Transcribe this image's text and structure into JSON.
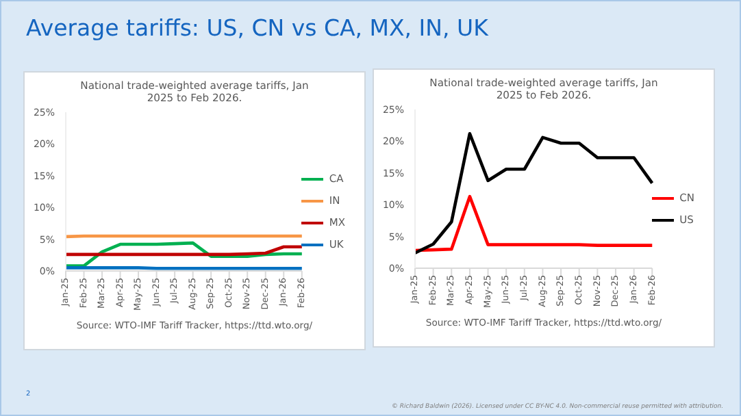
{
  "chart_data": [
    {
      "type": "other",
      "title": "Average tariffs: US, CN vs CA, MX, IN, UK",
      "annotations": [
        "2",
        "© Richard Baldwin (2026). Licensed under CC BY-NC 4.0. Non-commercial reuse permitted with attribution."
      ]
    },
    {
      "type": "line",
      "title": "National trade-weighted average tariffs, Jan 2025 to Feb 2026.",
      "categories": [
        "Jan-25",
        "Feb-25",
        "Mar-25",
        "Apr-25",
        "May-25",
        "Jun-25",
        "Jul-25",
        "Aug-25",
        "Sep-25",
        "Oct-25",
        "Nov-25",
        "Dec-25",
        "Jan-26",
        "Feb-26"
      ],
      "series": [
        {
          "name": "CA",
          "color": "#00b050",
          "values": [
            0.8,
            0.8,
            3.0,
            4.2,
            4.2,
            4.2,
            4.3,
            4.4,
            2.3,
            2.3,
            2.3,
            2.6,
            2.7,
            2.7
          ]
        },
        {
          "name": "IN",
          "color": "#f79646",
          "values": [
            5.4,
            5.5,
            5.5,
            5.5,
            5.5,
            5.5,
            5.5,
            5.5,
            5.5,
            5.5,
            5.5,
            5.5,
            5.5,
            5.5
          ]
        },
        {
          "name": "MX",
          "color": "#c00000",
          "values": [
            2.6,
            2.6,
            2.6,
            2.6,
            2.6,
            2.6,
            2.6,
            2.6,
            2.6,
            2.6,
            2.7,
            2.8,
            3.8,
            3.8
          ]
        },
        {
          "name": "UK",
          "color": "#0070c0",
          "values": [
            0.5,
            0.5,
            0.5,
            0.5,
            0.5,
            0.4,
            0.4,
            0.4,
            0.4,
            0.4,
            0.4,
            0.4,
            0.4,
            0.4
          ]
        }
      ],
      "ylim": [
        0,
        25
      ],
      "yticks": [
        {
          "value": 0,
          "label": "0%"
        },
        {
          "value": 5,
          "label": "5%"
        },
        {
          "value": 10,
          "label": "10%"
        },
        {
          "value": 15,
          "label": "15%"
        },
        {
          "value": 20,
          "label": "20%"
        },
        {
          "value": 25,
          "label": "25%"
        }
      ],
      "legend": "right",
      "marker": "none",
      "line_style": "solid",
      "annotations": [
        "Source: WTO-IMF Tariff Tracker, https://ttd.wto.org/"
      ]
    },
    {
      "type": "line",
      "title": "National trade-weighted average tariffs, Jan 2025 to Feb 2026.",
      "categories": [
        "Jan-25",
        "Feb-25",
        "Mar-25",
        "Apr-25",
        "May-25",
        "Jun-25",
        "Jul-25",
        "Aug-25",
        "Sep-25",
        "Oct-25",
        "Nov-25",
        "Dec-25",
        "Jan-26",
        "Feb-26"
      ],
      "series": [
        {
          "name": "CN",
          "color": "#ff0000",
          "values": [
            2.8,
            2.9,
            3.0,
            11.3,
            3.7,
            3.7,
            3.7,
            3.7,
            3.7,
            3.7,
            3.6,
            3.6,
            3.6,
            3.6
          ]
        },
        {
          "name": "US",
          "color": "#000000",
          "values": [
            2.4,
            3.8,
            7.3,
            21.2,
            13.8,
            15.6,
            15.6,
            20.6,
            19.7,
            19.7,
            17.4,
            17.4,
            17.4,
            13.4
          ]
        }
      ],
      "ylim": [
        0,
        25
      ],
      "yticks": [
        {
          "value": 0,
          "label": "0%"
        },
        {
          "value": 5,
          "label": "5%"
        },
        {
          "value": 10,
          "label": "10%"
        },
        {
          "value": 15,
          "label": "15%"
        },
        {
          "value": 20,
          "label": "20%"
        },
        {
          "value": 25,
          "label": "25%"
        }
      ],
      "legend": "right",
      "marker": "none",
      "line_style": "solid",
      "annotations": [
        "Source: WTO-IMF Tariff Tracker, https://ttd.wto.org/"
      ]
    }
  ]
}
